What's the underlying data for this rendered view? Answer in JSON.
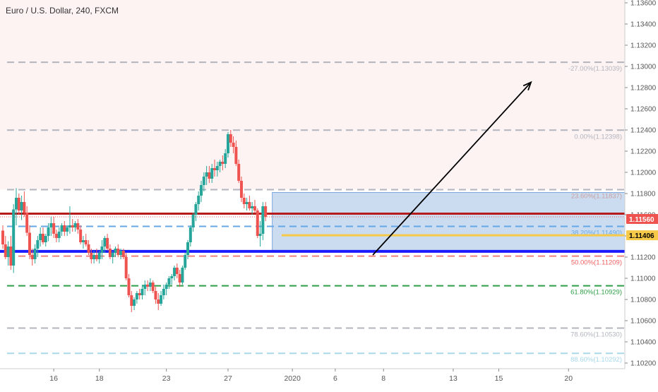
{
  "chart_data": {
    "type": "candlestick",
    "title": "Euro / U.S. Dollar, 240, FXCM",
    "ylim": [
      1.102,
      1.136
    ],
    "y_ticks": [
      "1.13600",
      "1.13400",
      "1.13200",
      "1.13000",
      "1.12800",
      "1.12600",
      "1.12400",
      "1.12200",
      "1.12000",
      "1.11800",
      "1.11600",
      "1.11400",
      "1.11200",
      "1.11000",
      "1.10800",
      "1.10600",
      "1.10400",
      "1.10200"
    ],
    "x_ticks": [
      {
        "label": "16",
        "bar": 19
      },
      {
        "label": "18",
        "bar": 36
      },
      {
        "label": "23",
        "bar": 61
      },
      {
        "label": "27",
        "bar": 84
      },
      {
        "label": "2020",
        "bar": 108
      },
      {
        "label": "6",
        "bar": 124
      },
      {
        "label": "8",
        "bar": 142
      },
      {
        "label": "13",
        "bar": 168
      },
      {
        "label": "15",
        "bar": 185
      },
      {
        "label": "20",
        "bar": 211
      }
    ],
    "bar_count": 232,
    "candles": [
      [
        1.1145,
        1.115,
        1.1128,
        1.1132
      ],
      [
        1.1132,
        1.114,
        1.1118,
        1.112
      ],
      [
        1.112,
        1.1135,
        1.1112,
        1.113
      ],
      [
        1.113,
        1.114,
        1.1108,
        1.1112
      ],
      [
        1.1112,
        1.117,
        1.1105,
        1.1165
      ],
      [
        1.1165,
        1.1185,
        1.115,
        1.1176
      ],
      [
        1.1176,
        1.118,
        1.116,
        1.1164
      ],
      [
        1.1164,
        1.1178,
        1.1155,
        1.1172
      ],
      [
        1.1172,
        1.1182,
        1.1158,
        1.1162
      ],
      [
        1.1162,
        1.1168,
        1.114,
        1.1143
      ],
      [
        1.1143,
        1.115,
        1.1118,
        1.1122
      ],
      [
        1.1122,
        1.1128,
        1.1112,
        1.1118
      ],
      [
        1.1118,
        1.1132,
        1.1114,
        1.1128
      ],
      [
        1.1128,
        1.114,
        1.112,
        1.1136
      ],
      [
        1.1136,
        1.1148,
        1.113,
        1.1142
      ],
      [
        1.1142,
        1.1148,
        1.1132,
        1.1134
      ],
      [
        1.1134,
        1.1142,
        1.113,
        1.114
      ],
      [
        1.114,
        1.1152,
        1.1135,
        1.1148
      ],
      [
        1.1148,
        1.1158,
        1.114,
        1.1152
      ],
      [
        1.1152,
        1.1158,
        1.1138,
        1.1142
      ],
      [
        1.1142,
        1.1146,
        1.1134,
        1.1138
      ],
      [
        1.1138,
        1.1148,
        1.1134,
        1.1144
      ],
      [
        1.1144,
        1.1152,
        1.114,
        1.115
      ],
      [
        1.115,
        1.1154,
        1.114,
        1.1144
      ],
      [
        1.1144,
        1.115,
        1.114,
        1.1148
      ],
      [
        1.1148,
        1.1168,
        1.1142,
        1.115
      ],
      [
        1.115,
        1.1156,
        1.1144,
        1.1148
      ],
      [
        1.1148,
        1.1154,
        1.1144,
        1.1152
      ],
      [
        1.1152,
        1.1156,
        1.1142,
        1.1146
      ],
      [
        1.1146,
        1.115,
        1.1132,
        1.1134
      ],
      [
        1.1134,
        1.114,
        1.1128,
        1.1136
      ],
      [
        1.1136,
        1.1142,
        1.113,
        1.1132
      ],
      [
        1.1132,
        1.1136,
        1.1122,
        1.1124
      ],
      [
        1.1124,
        1.1128,
        1.1114,
        1.1118
      ],
      [
        1.1118,
        1.1126,
        1.1114,
        1.1122
      ],
      [
        1.1122,
        1.1128,
        1.1116,
        1.1118
      ],
      [
        1.1118,
        1.1126,
        1.1114,
        1.1124
      ],
      [
        1.1124,
        1.1136,
        1.1118,
        1.113
      ],
      [
        1.113,
        1.114,
        1.1124,
        1.1138
      ],
      [
        1.1138,
        1.1142,
        1.1126,
        1.1128
      ],
      [
        1.1128,
        1.1132,
        1.1118,
        1.112
      ],
      [
        1.112,
        1.1126,
        1.1114,
        1.1124
      ],
      [
        1.1124,
        1.113,
        1.112,
        1.1128
      ],
      [
        1.1128,
        1.1132,
        1.112,
        1.1122
      ],
      [
        1.1122,
        1.1128,
        1.1118,
        1.1126
      ],
      [
        1.1126,
        1.1128,
        1.1118,
        1.112
      ],
      [
        1.112,
        1.1124,
        1.1098,
        1.11
      ],
      [
        1.11,
        1.1104,
        1.1082,
        1.1084
      ],
      [
        1.1084,
        1.1088,
        1.1068,
        1.1074
      ],
      [
        1.1074,
        1.1082,
        1.107,
        1.108
      ],
      [
        1.108,
        1.1088,
        1.1076,
        1.1086
      ],
      [
        1.1086,
        1.109,
        1.108,
        1.1084
      ],
      [
        1.1084,
        1.1094,
        1.108,
        1.109
      ],
      [
        1.109,
        1.1098,
        1.1084,
        1.1094
      ],
      [
        1.1094,
        1.1098,
        1.1088,
        1.1092
      ],
      [
        1.1092,
        1.11,
        1.1088,
        1.1096
      ],
      [
        1.1096,
        1.1098,
        1.1086,
        1.1088
      ],
      [
        1.1088,
        1.1092,
        1.1076,
        1.108
      ],
      [
        1.108,
        1.1086,
        1.107,
        1.1076
      ],
      [
        1.1076,
        1.1088,
        1.1074,
        1.1084
      ],
      [
        1.1084,
        1.1094,
        1.108,
        1.109
      ],
      [
        1.109,
        1.1096,
        1.1084,
        1.1094
      ],
      [
        1.1094,
        1.1102,
        1.109,
        1.11
      ],
      [
        1.11,
        1.1104,
        1.1094,
        1.1102
      ],
      [
        1.1102,
        1.1112,
        1.1098,
        1.111
      ],
      [
        1.111,
        1.1114,
        1.11,
        1.1104
      ],
      [
        1.1104,
        1.1108,
        1.1092,
        1.1096
      ],
      [
        1.1096,
        1.1112,
        1.1094,
        1.111
      ],
      [
        1.111,
        1.1124,
        1.1108,
        1.1122
      ],
      [
        1.1122,
        1.1136,
        1.1118,
        1.1134
      ],
      [
        1.1134,
        1.115,
        1.113,
        1.1148
      ],
      [
        1.1148,
        1.1162,
        1.1144,
        1.116
      ],
      [
        1.116,
        1.1172,
        1.1154,
        1.117
      ],
      [
        1.117,
        1.1182,
        1.1164,
        1.1178
      ],
      [
        1.1178,
        1.1192,
        1.1172,
        1.1188
      ],
      [
        1.1188,
        1.12,
        1.1182,
        1.1196
      ],
      [
        1.1196,
        1.1206,
        1.1188,
        1.12
      ],
      [
        1.12,
        1.1206,
        1.119,
        1.1194
      ],
      [
        1.1194,
        1.1208,
        1.119,
        1.1204
      ],
      [
        1.1204,
        1.1212,
        1.1196,
        1.1202
      ],
      [
        1.1202,
        1.121,
        1.1196,
        1.1206
      ],
      [
        1.1206,
        1.1212,
        1.12,
        1.121
      ],
      [
        1.121,
        1.1216,
        1.1202,
        1.1208
      ],
      [
        1.1208,
        1.1222,
        1.1204,
        1.1218
      ],
      [
        1.1218,
        1.1238,
        1.1214,
        1.1236
      ],
      [
        1.1236,
        1.124,
        1.1224,
        1.1228
      ],
      [
        1.1228,
        1.1234,
        1.1218,
        1.1224
      ],
      [
        1.1224,
        1.123,
        1.1206,
        1.1208
      ],
      [
        1.1208,
        1.1212,
        1.119,
        1.1192
      ],
      [
        1.1192,
        1.1196,
        1.1172,
        1.1176
      ],
      [
        1.1176,
        1.118,
        1.1166,
        1.117
      ],
      [
        1.117,
        1.1176,
        1.1164,
        1.1172
      ],
      [
        1.1172,
        1.1178,
        1.1164,
        1.1166
      ],
      [
        1.1166,
        1.1172,
        1.116,
        1.1168
      ],
      [
        1.1168,
        1.1174,
        1.1162,
        1.1164
      ],
      [
        1.1164,
        1.1166,
        1.1138,
        1.114
      ],
      [
        1.114,
        1.1154,
        1.113,
        1.1142
      ],
      [
        1.1142,
        1.1172,
        1.1136,
        1.1168
      ],
      [
        1.1168,
        1.1172,
        1.1154,
        1.1158
      ]
    ],
    "candle_start_bar": 0,
    "candle_spacing": 1,
    "levels": [
      {
        "label": "-27.00%(1.13039)",
        "value": 1.13039,
        "color": "#b2b5be",
        "label_color": "#b2b5be"
      },
      {
        "label": "0.00%(1.12398)",
        "value": 1.12398,
        "color": "#b2b5be",
        "label_color": "#b2b5be"
      },
      {
        "label": "23.60%(1.11837)",
        "value": 1.11837,
        "color": "#b2b5be",
        "label_color": "#c8a0a0"
      },
      {
        "label": "38.20%(1.11490)",
        "value": 1.1149,
        "color": "#64a8e8",
        "label_color": "#64a8e8"
      },
      {
        "label": "50.00%(1.11209)",
        "value": 1.11209,
        "color": "#f08080",
        "label_color": "#f06060"
      },
      {
        "label": "61.80%(1.10929)",
        "value": 1.10929,
        "color": "#2e9e47",
        "label_color": "#2e9e47"
      },
      {
        "label": "78.60%(1.10530)",
        "value": 1.1053,
        "color": "#b2b5be",
        "label_color": "#b2b5be"
      },
      {
        "label": "88.60%(1.10292)",
        "value": 1.10292,
        "color": "#a8d8ea",
        "label_color": "#a8d8ea"
      }
    ],
    "support_line": 1.11254,
    "resistance_line": 1.1161,
    "dotted_line": 1.1158,
    "yellow_line": 1.11406,
    "box_range": [
      1.11254,
      1.1181
    ],
    "price_tags": [
      {
        "value": "1.11560",
        "y": 1.1156,
        "bg": "#ef5350",
        "fg": "#ffffff"
      },
      {
        "value": "1.11406",
        "y": 1.11406,
        "bg": "#f7c948",
        "fg": "#000000"
      }
    ],
    "colors": {
      "up": "#26a69a",
      "down": "#ef5350",
      "support": "#1a1aff",
      "resistance": "#b71c1c",
      "box": "#a9c4e8"
    }
  }
}
